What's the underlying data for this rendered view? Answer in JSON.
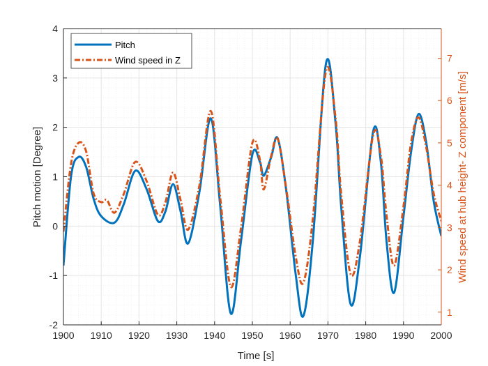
{
  "chart_data": {
    "type": "line",
    "xlabel": "Time [s]",
    "ylabel_left": "Pitch motion [Degree]",
    "ylabel_right": "Wind speed at hub height- Z component [m/s]",
    "xlim": [
      1900,
      2000
    ],
    "ylim_left": [
      -2,
      4
    ],
    "ylim_right": [
      0.7,
      7.7
    ],
    "x_ticks": [
      "1900",
      "1910",
      "1920",
      "1930",
      "1940",
      "1950",
      "1960",
      "1970",
      "1980",
      "1990",
      "2000"
    ],
    "y_left_ticks": [
      "-2",
      "-1",
      "0",
      "1",
      "2",
      "3",
      "4"
    ],
    "y_right_ticks": [
      "1",
      "2",
      "3",
      "4",
      "5",
      "6",
      "7"
    ],
    "grid": true,
    "minor_grid": true,
    "legend_position": "top-left",
    "colors": {
      "pitch": "#0072bd",
      "wind": "#d95319",
      "axis": "#262626",
      "grid": "#e5e5e5"
    },
    "series": [
      {
        "name": "Pitch",
        "axis": "left",
        "style": "solid",
        "x": [
          1900,
          1902,
          1904,
          1906,
          1908,
          1910,
          1913.5,
          1916,
          1919,
          1922,
          1925,
          1927,
          1929,
          1931,
          1933,
          1936,
          1939,
          1941.5,
          1944.3,
          1947,
          1950,
          1952,
          1953,
          1955,
          1956.7,
          1959,
          1961.5,
          1963.5,
          1966,
          1969.5,
          1972,
          1973.5,
          1976,
          1978.5,
          1982,
          1984,
          1985.5,
          1987.5,
          1990,
          1992,
          1994,
          1996,
          1998,
          2000
        ],
        "values": [
          -0.8,
          1.0,
          1.4,
          1.2,
          0.55,
          0.2,
          0.07,
          0.45,
          1.12,
          0.75,
          0.1,
          0.3,
          0.85,
          0.3,
          -0.35,
          0.7,
          2.18,
          0.4,
          -1.77,
          -0.3,
          1.45,
          1.3,
          1.02,
          1.4,
          1.78,
          0.7,
          -1.0,
          -1.82,
          -0.3,
          3.3,
          2.1,
          0.4,
          -1.58,
          -0.6,
          1.93,
          1.3,
          -0.3,
          -1.35,
          0.2,
          1.5,
          2.27,
          1.7,
          0.5,
          -0.2
        ]
      },
      {
        "name": "Wind speed in Z",
        "axis": "right",
        "style": "dash-dot",
        "x": [
          1900,
          1902,
          1904,
          1906,
          1908,
          1910,
          1911.5,
          1913.5,
          1916,
          1919,
          1922,
          1925,
          1927,
          1929,
          1931,
          1933,
          1936,
          1939,
          1941.5,
          1944.3,
          1947,
          1950,
          1952,
          1953,
          1955,
          1956.7,
          1959,
          1961.5,
          1963.5,
          1966,
          1969.5,
          1972,
          1973.5,
          1976,
          1978.5,
          1982,
          1984,
          1985.5,
          1987.5,
          1990,
          1992,
          1994,
          1996,
          1998,
          2000
        ],
        "values": [
          2.9,
          4.5,
          5.0,
          4.8,
          3.8,
          3.6,
          3.65,
          3.35,
          3.8,
          4.55,
          4.1,
          3.3,
          3.6,
          4.3,
          3.65,
          2.95,
          4.0,
          5.75,
          3.7,
          1.6,
          3.0,
          5.0,
          4.6,
          3.9,
          4.7,
          5.1,
          3.9,
          2.3,
          1.7,
          3.2,
          6.7,
          5.6,
          3.8,
          1.9,
          2.7,
          5.2,
          4.7,
          3.3,
          2.1,
          3.5,
          5.0,
          5.6,
          4.9,
          3.8,
          3.15
        ]
      }
    ]
  }
}
